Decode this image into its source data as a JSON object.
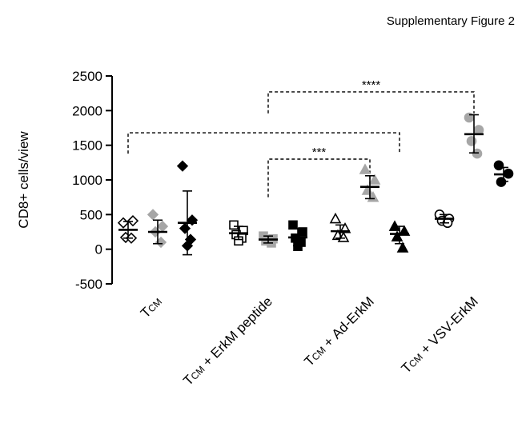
{
  "header": {
    "text": "Supplementary  Figure 2"
  },
  "chart_data": {
    "type": "scatter",
    "ylabel": "CD8+ cells/view",
    "ylim": [
      -500,
      2500
    ],
    "yticks": [
      -500,
      0,
      500,
      1000,
      1500,
      2000,
      2500
    ],
    "grid": false,
    "groups": [
      {
        "label_main": "T",
        "label_sub": "CM",
        "label_rest": ""
      },
      {
        "label_main": "T",
        "label_sub": "CM",
        "label_rest": " + ErkM peptide"
      },
      {
        "label_main": "T",
        "label_sub": "CM",
        "label_rest": " + Ad-ErkM"
      },
      {
        "label_main": "T",
        "label_sub": "CM",
        "label_rest": " + VSV-ErkM"
      }
    ],
    "series": [
      {
        "group": 0,
        "marker": "diamond-open",
        "color": "#ffffff",
        "stroke": "#000000",
        "points": [
          380,
          410,
          170,
          160
        ],
        "mean": 280,
        "sd_low": 160,
        "sd_high": 400
      },
      {
        "group": 0,
        "marker": "diamond",
        "color": "#a6a6a6",
        "stroke": "#a6a6a6",
        "points": [
          500,
          330,
          250,
          100
        ],
        "mean": 250,
        "sd_low": 80,
        "sd_high": 420
      },
      {
        "group": 0,
        "marker": "diamond",
        "color": "#000000",
        "stroke": "#000000",
        "points": [
          1200,
          420,
          300,
          140,
          50
        ],
        "mean": 380,
        "sd_low": -80,
        "sd_high": 840
      },
      {
        "group": 1,
        "marker": "square-open",
        "color": "#ffffff",
        "stroke": "#000000",
        "points": [
          350,
          270,
          210,
          160,
          120
        ],
        "mean": 230,
        "sd_low": 140,
        "sd_high": 330
      },
      {
        "group": 1,
        "marker": "square",
        "color": "#a6a6a6",
        "stroke": "#a6a6a6",
        "points": [
          190,
          150,
          120,
          90
        ],
        "mean": 140,
        "sd_low": 90,
        "sd_high": 190
      },
      {
        "group": 1,
        "marker": "square",
        "color": "#000000",
        "stroke": "#000000",
        "points": [
          350,
          250,
          160,
          100,
          40
        ],
        "mean": 170,
        "sd_low": 50,
        "sd_high": 300
      },
      {
        "group": 2,
        "marker": "triangle-open",
        "color": "#ffffff",
        "stroke": "#000000",
        "points": [
          440,
          300,
          200,
          170
        ],
        "mean": 260,
        "sd_low": 160,
        "sd_high": 350
      },
      {
        "group": 2,
        "marker": "triangle",
        "color": "#a6a6a6",
        "stroke": "#a6a6a6",
        "points": [
          1150,
          1000,
          850,
          750
        ],
        "mean": 900,
        "sd_low": 730,
        "sd_high": 1060
      },
      {
        "group": 2,
        "marker": "triangle",
        "color": "#000000",
        "stroke": "#000000",
        "points": [
          330,
          260,
          180,
          20
        ],
        "mean": 220,
        "sd_low": 80,
        "sd_high": 330
      },
      {
        "group": 3,
        "marker": "circle-open",
        "color": "#ffffff",
        "stroke": "#000000",
        "points": [
          500,
          440,
          410,
          380
        ],
        "mean": 440,
        "sd_low": 380,
        "sd_high": 500
      },
      {
        "group": 3,
        "marker": "circle",
        "color": "#a6a6a6",
        "stroke": "#a6a6a6",
        "points": [
          1900,
          1720,
          1560,
          1380
        ],
        "mean": 1660,
        "sd_low": 1390,
        "sd_high": 1940
      },
      {
        "group": 3,
        "marker": "circle",
        "color": "#000000",
        "stroke": "#000000",
        "points": [
          1210,
          1090,
          970
        ],
        "mean": 1080,
        "sd_low": 980,
        "sd_high": 1180
      }
    ],
    "significance": [
      {
        "label": "****",
        "y": 2270,
        "from_group": 1,
        "from_series": 1,
        "to_group": 3,
        "to_series": 1,
        "drop_to": 1960
      },
      {
        "label": "",
        "y": 1680,
        "from_group": 0,
        "from_series": 0,
        "to_group": 2,
        "to_series": 2,
        "drop_to": 1380
      },
      {
        "label": "***",
        "y": 1300,
        "from_group": 1,
        "from_series": 1,
        "to_group": 2,
        "to_series": 1,
        "drop_to": 750
      }
    ]
  }
}
